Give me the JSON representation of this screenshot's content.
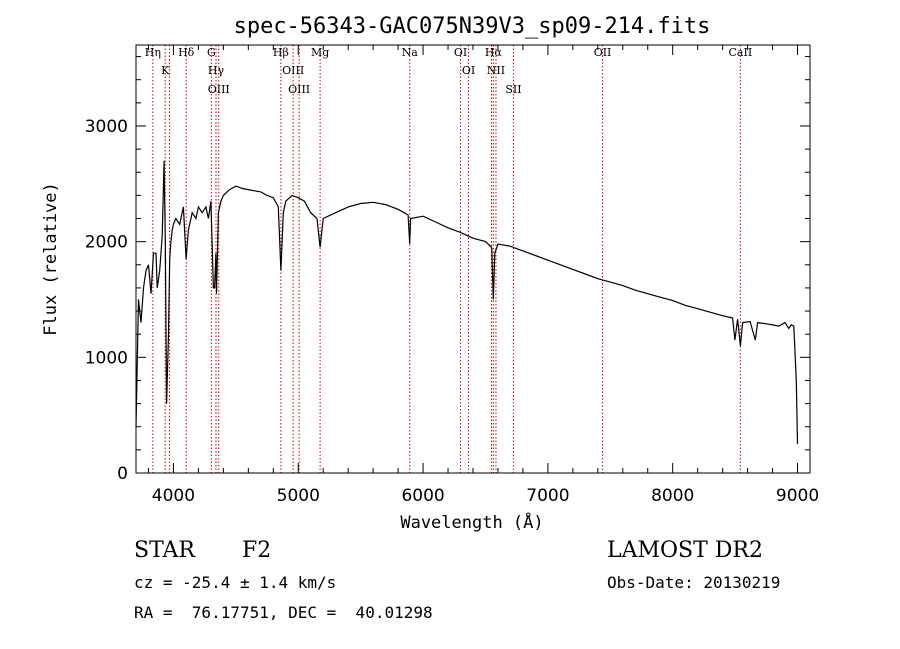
{
  "chart_data": {
    "type": "line",
    "title": "spec-56343-GAC075N39V3_sp09-214.fits",
    "xlabel": "Wavelength (Å)",
    "ylabel": "Flux (relative)",
    "xlim": [
      3700,
      9100
    ],
    "ylim": [
      0,
      3700
    ],
    "xticks": [
      4000,
      5000,
      6000,
      7000,
      8000,
      9000
    ],
    "xtick_labels": [
      "4000",
      "5000",
      "6000",
      "7000",
      "8000",
      "9000"
    ],
    "yticks": [
      0,
      1000,
      2000,
      3000
    ],
    "ytick_labels": [
      "0",
      "1000",
      "2000",
      "3000"
    ],
    "grid": false,
    "line_color": "#000000",
    "marker_color": "#cc0000",
    "series": [
      {
        "x": [
          3700,
          3720,
          3740,
          3760,
          3780,
          3800,
          3820,
          3840,
          3860,
          3870,
          3890,
          3910,
          3925,
          3935,
          3945,
          3960,
          3970,
          3980,
          3990,
          4000,
          4020,
          4050,
          4080,
          4101,
          4120,
          4150,
          4180,
          4200,
          4230,
          4260,
          4280,
          4300,
          4320,
          4330,
          4340,
          4345,
          4360,
          4380,
          4400,
          4450,
          4500,
          4550,
          4600,
          4650,
          4700,
          4750,
          4800,
          4840,
          4861,
          4880,
          4900,
          4950,
          5000,
          5050,
          5100,
          5150,
          5175,
          5200,
          5300,
          5400,
          5500,
          5600,
          5700,
          5800,
          5880,
          5893,
          5900,
          6000,
          6100,
          6200,
          6300,
          6400,
          6500,
          6550,
          6563,
          6575,
          6600,
          6700,
          6800,
          6900,
          7000,
          7100,
          7200,
          7300,
          7400,
          7500,
          7600,
          7700,
          7800,
          7900,
          8000,
          8100,
          8200,
          8300,
          8400,
          8480,
          8498,
          8520,
          8542,
          8560,
          8620,
          8662,
          8680,
          8750,
          8800,
          8850,
          8900,
          8930,
          8950,
          8970,
          8990,
          9000
        ],
        "y": [
          400,
          1500,
          1300,
          1600,
          1750,
          1800,
          1550,
          1900,
          1900,
          1600,
          1750,
          2050,
          2700,
          2000,
          600,
          1200,
          1850,
          2000,
          2100,
          2150,
          2200,
          2150,
          2300,
          1850,
          2100,
          2250,
          2200,
          2300,
          2250,
          2300,
          2200,
          2350,
          1600,
          1600,
          1900,
          1550,
          2250,
          2350,
          2400,
          2450,
          2480,
          2460,
          2450,
          2440,
          2430,
          2400,
          2380,
          2300,
          1750,
          2250,
          2350,
          2400,
          2380,
          2350,
          2250,
          2200,
          1950,
          2200,
          2250,
          2300,
          2330,
          2340,
          2320,
          2280,
          2230,
          1980,
          2200,
          2220,
          2170,
          2120,
          2080,
          2030,
          2000,
          1950,
          1500,
          1900,
          1980,
          1960,
          1920,
          1880,
          1840,
          1800,
          1760,
          1720,
          1680,
          1650,
          1620,
          1580,
          1550,
          1520,
          1490,
          1450,
          1420,
          1390,
          1360,
          1340,
          1150,
          1330,
          1100,
          1300,
          1310,
          1150,
          1300,
          1290,
          1280,
          1270,
          1300,
          1250,
          1280,
          1270,
          800,
          250
        ]
      }
    ],
    "lines": [
      {
        "x": 3835,
        "label": "Hη"
      },
      {
        "x": 3934,
        "label": "K"
      },
      {
        "x": 3969,
        "label": ""
      },
      {
        "x": 4102,
        "label": "Hδ"
      },
      {
        "x": 4304,
        "label": "G"
      },
      {
        "x": 4341,
        "label": "Hγ"
      },
      {
        "x": 4363,
        "label": "OIII"
      },
      {
        "x": 4861,
        "label": "Hβ"
      },
      {
        "x": 4959,
        "label": "OIII"
      },
      {
        "x": 5007,
        "label": "OIII"
      },
      {
        "x": 5175,
        "label": "Mg"
      },
      {
        "x": 5893,
        "label": "Na"
      },
      {
        "x": 6300,
        "label": "OI"
      },
      {
        "x": 6364,
        "label": "OI"
      },
      {
        "x": 6548,
        "label": ""
      },
      {
        "x": 6563,
        "label": "Hα"
      },
      {
        "x": 6584,
        "label": "NII"
      },
      {
        "x": 6724,
        "label": "SII"
      },
      {
        "x": 7438,
        "label": "OII"
      },
      {
        "x": 8542,
        "label": "CaII"
      }
    ]
  },
  "footer": {
    "object_type": "STAR",
    "subclass": "F2",
    "survey": "LAMOST DR2",
    "redshift": "cz = -25.4 ± 1.4 km/s",
    "obs_date": "Obs-Date: 20130219",
    "coords": "RA =  76.17751, DEC =  40.01298"
  }
}
